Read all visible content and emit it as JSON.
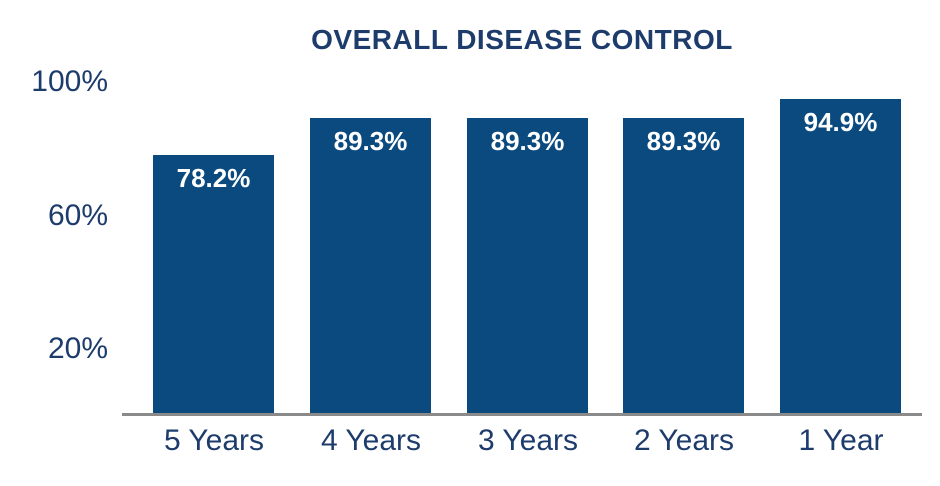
{
  "chart_data": {
    "type": "bar",
    "title": "OVERALL DISEASE CONTROL",
    "categories": [
      "5 Years",
      "4 Years",
      "3 Years",
      "2 Years",
      "1 Year"
    ],
    "values": [
      78.2,
      89.3,
      89.3,
      89.3,
      94.9
    ],
    "value_labels": [
      "78.2%",
      "89.3%",
      "89.3%",
      "89.3%",
      "94.9%"
    ],
    "y_ticks": [
      {
        "value": 100,
        "label": "100%"
      },
      {
        "value": 60,
        "label": "60%"
      },
      {
        "value": 20,
        "label": "20%"
      }
    ],
    "ylim": [
      0,
      100
    ],
    "xlabel": "",
    "ylabel": "",
    "grid": false,
    "legend": false,
    "value_labels_position": "inside-top",
    "colors": {
      "bar_fill": "#0a4a7e",
      "title_text": "#1d3c6c",
      "axis_label_text": "#1d3c6c",
      "bar_value_text": "#ffffff",
      "axis_line": "#8a8a8a",
      "background": "#ffffff"
    }
  }
}
